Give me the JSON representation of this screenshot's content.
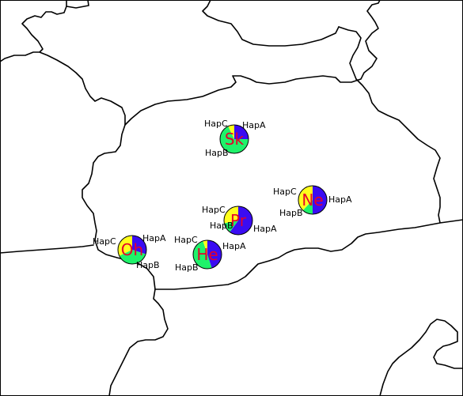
{
  "map": {
    "frame_color": "#000000",
    "haplotype_colors": {
      "HapA": "#3a0cf2",
      "HapB": "#1ff26a",
      "HapC": "#ffff1c"
    },
    "code_color": "#e4002b",
    "sites": [
      {
        "code": "Sk",
        "proportions": {
          "HapA": 0.25,
          "HapB": 0.68,
          "HapC": 0.07
        },
        "labels": {
          "HapA": "HapA",
          "HapB": "HapB",
          "HapC": "HapC"
        }
      },
      {
        "code": "Ne",
        "proportions": {
          "HapA": 0.5,
          "HapB": 0.12,
          "HapC": 0.38
        },
        "labels": {
          "HapA": "HapA",
          "HapB": "HapB",
          "HapC": "HapC"
        }
      },
      {
        "code": "Pr",
        "proportions": {
          "HapA": 0.6,
          "HapB": 0.12,
          "HapC": 0.28
        },
        "labels": {
          "HapA": "HapA",
          "HapB": "HapB",
          "HapC": "HapC"
        }
      },
      {
        "code": "Oh",
        "proportions": {
          "HapA": 0.3,
          "HapB": 0.38,
          "HapC": 0.32
        },
        "labels": {
          "HapA": "HapA",
          "HapB": "HapB",
          "HapC": "HapC"
        }
      },
      {
        "code": "He",
        "proportions": {
          "HapA": 0.45,
          "HapB": 0.5,
          "HapC": 0.05
        },
        "labels": {
          "HapA": "HapA",
          "HapB": "HapB",
          "HapC": "HapC"
        }
      }
    ]
  }
}
